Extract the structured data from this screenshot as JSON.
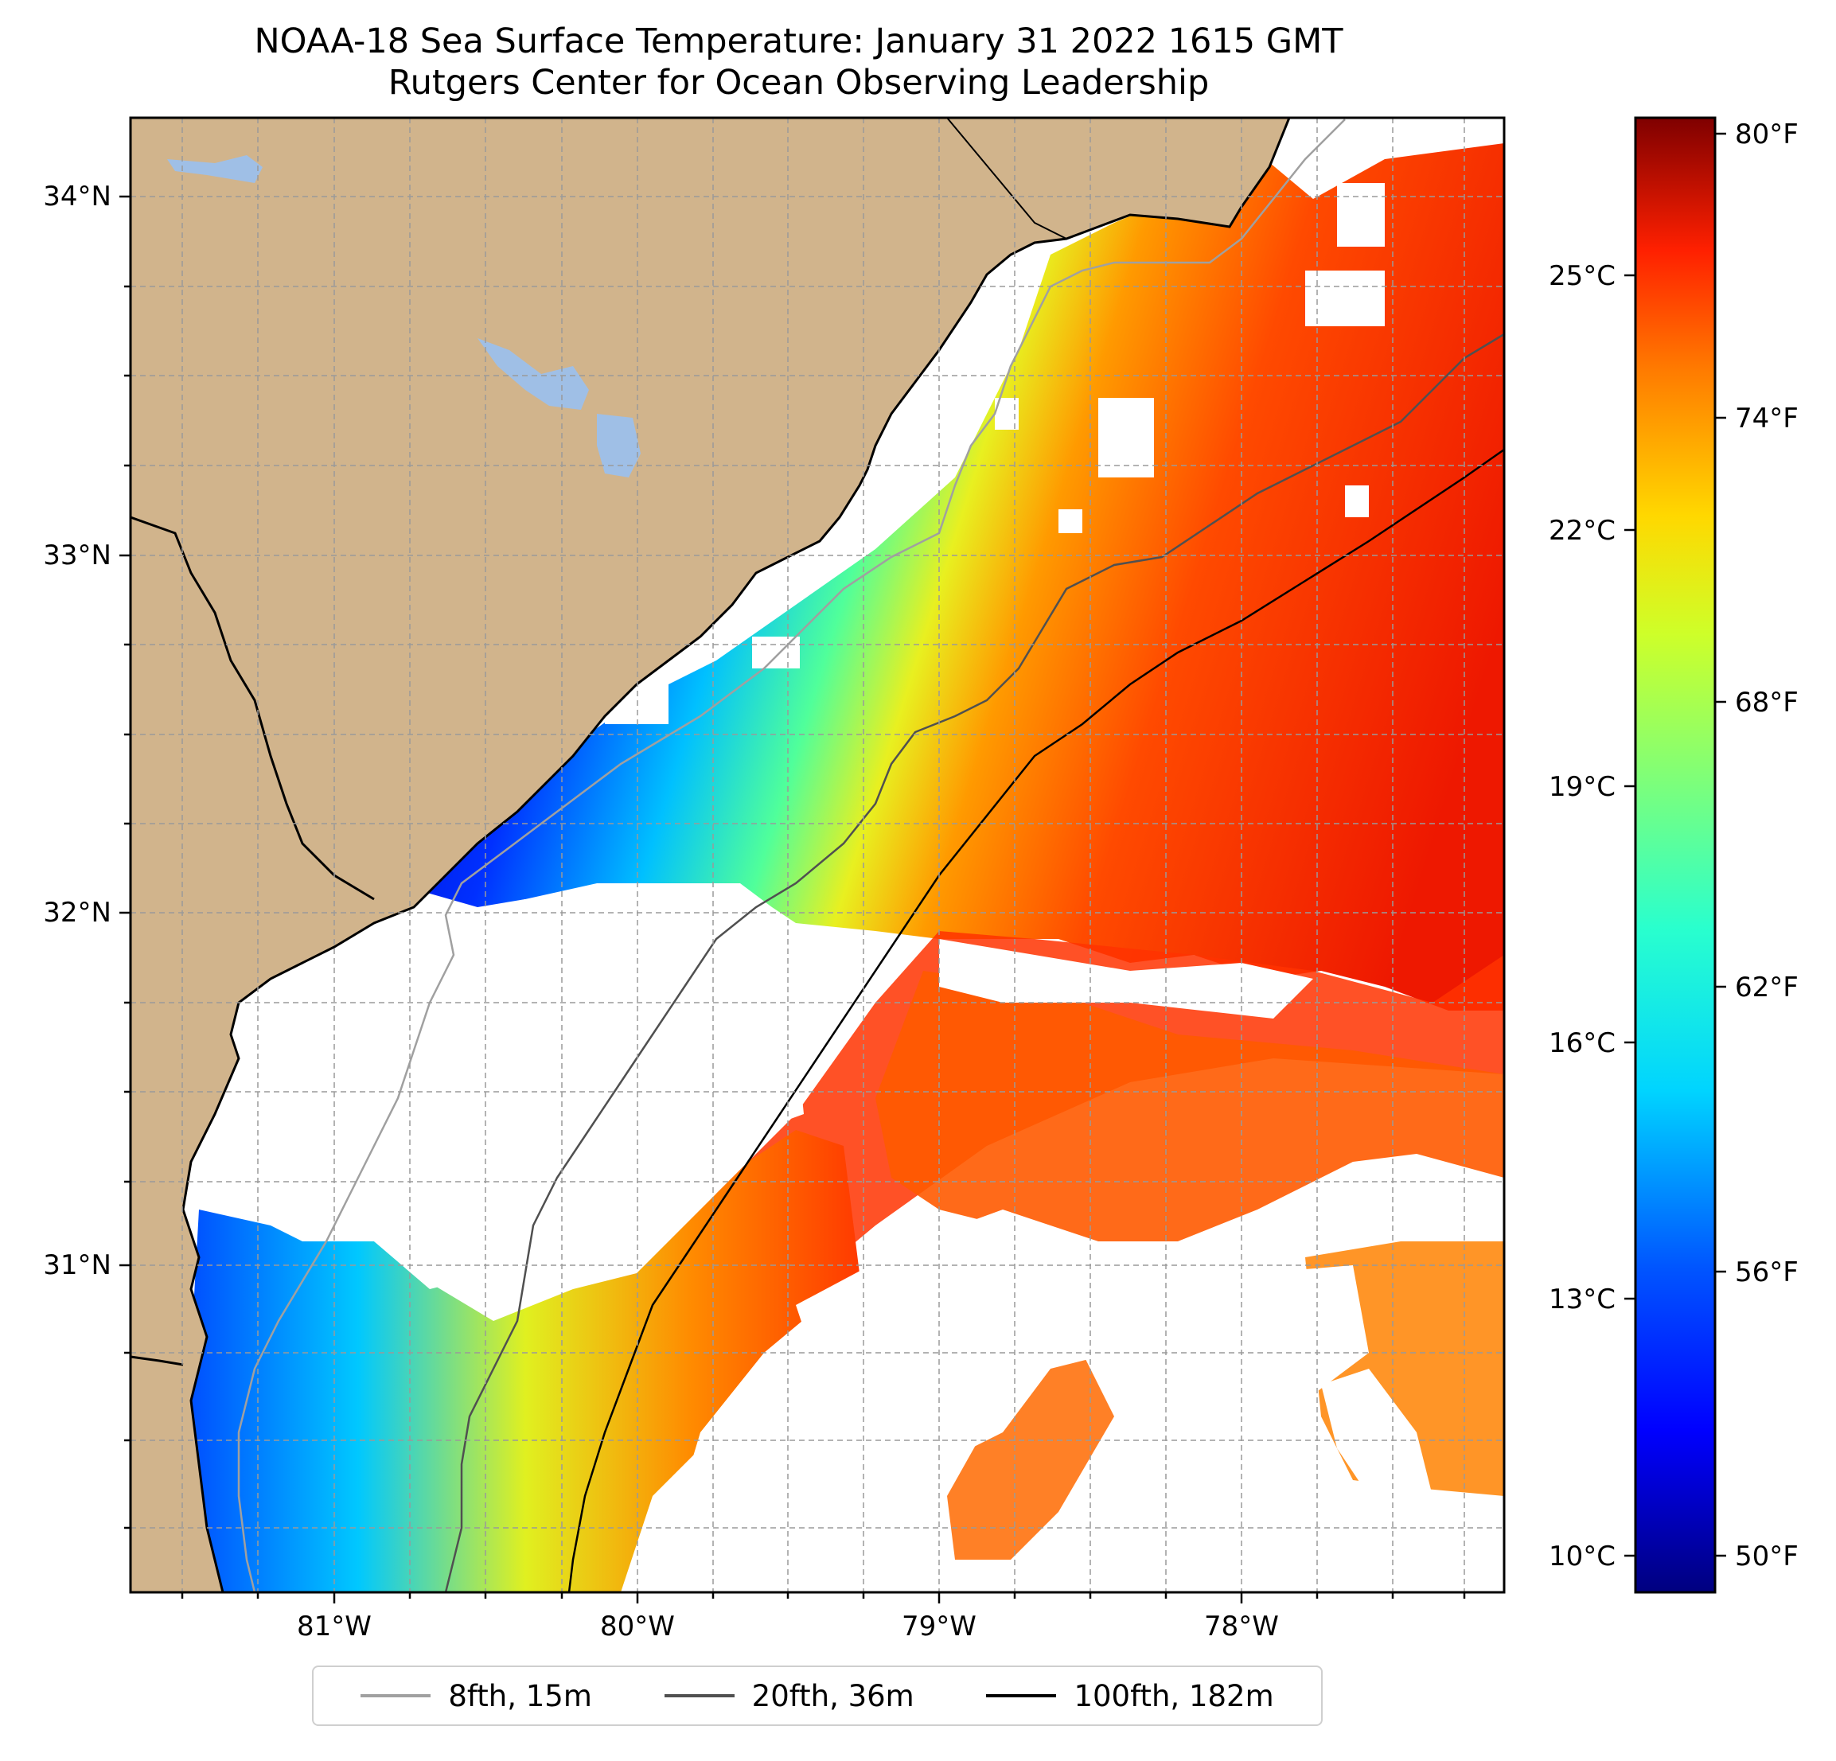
{
  "title": {
    "line1": "NOAA-18 Sea Surface Temperature: January 31 2022 1615 GMT",
    "line2": "Rutgers Center for Ocean Observing Leadership"
  },
  "map": {
    "lat_labels": [
      "34°N",
      "33°N",
      "32°N",
      "31°N"
    ],
    "lon_labels": [
      "81°W",
      "80°W",
      "79°W",
      "78°W"
    ],
    "gridlines": "dashed",
    "land_color": "#d1b48c",
    "water_body_color": "#9fbfe6",
    "no_data_color": "#ffffff"
  },
  "colorbar": {
    "colormap": "jet",
    "celsius_labels": [
      "25°C",
      "22°C",
      "19°C",
      "16°C",
      "13°C",
      "10°C"
    ],
    "fahrenheit_labels": [
      "80°F",
      "74°F",
      "68°F",
      "62°F",
      "56°F",
      "50°F"
    ]
  },
  "legend": {
    "items": [
      {
        "label": "8fth, 15m",
        "color": "#a0a0a0"
      },
      {
        "label": "20fth, 36m",
        "color": "#505050"
      },
      {
        "label": "100fth, 182m",
        "color": "#000000"
      }
    ]
  }
}
